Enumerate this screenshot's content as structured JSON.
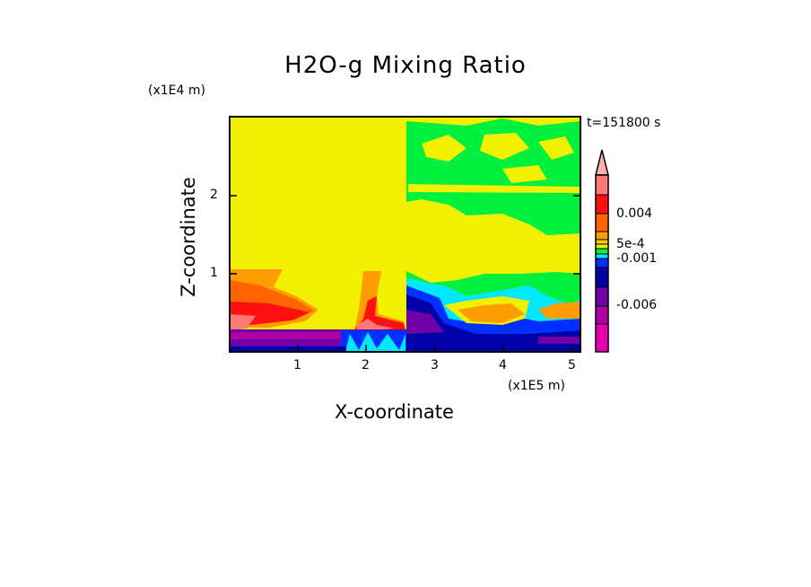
{
  "chart_data": {
    "type": "heatmap",
    "title": "H2O-g Mixing Ratio",
    "xlabel": "X-coordinate",
    "ylabel": "Z-coordinate",
    "x_unit": "(x1E5 m)",
    "y_unit": "(x1E4 m)",
    "xlim": [
      0,
      5.1
    ],
    "ylim": [
      0,
      3.0
    ],
    "x_ticks": [
      "1",
      "2",
      "3",
      "4",
      "5"
    ],
    "y_ticks": [
      "1",
      "2"
    ],
    "time_label": "t=151800 s",
    "colorbar": {
      "labels": [
        "0.004",
        "5e-4",
        "-0.001",
        "-0.006"
      ],
      "colors_top_to_bottom": [
        "#ffb0b0",
        "#ff7878",
        "#ff1010",
        "#ff6400",
        "#ff9c00",
        "#ffd000",
        "#f0f000",
        "#00f040",
        "#00e8ff",
        "#0030ff",
        "#0000a8",
        "#7000a8",
        "#b000a8",
        "#e800b0"
      ],
      "extend": "top"
    }
  }
}
